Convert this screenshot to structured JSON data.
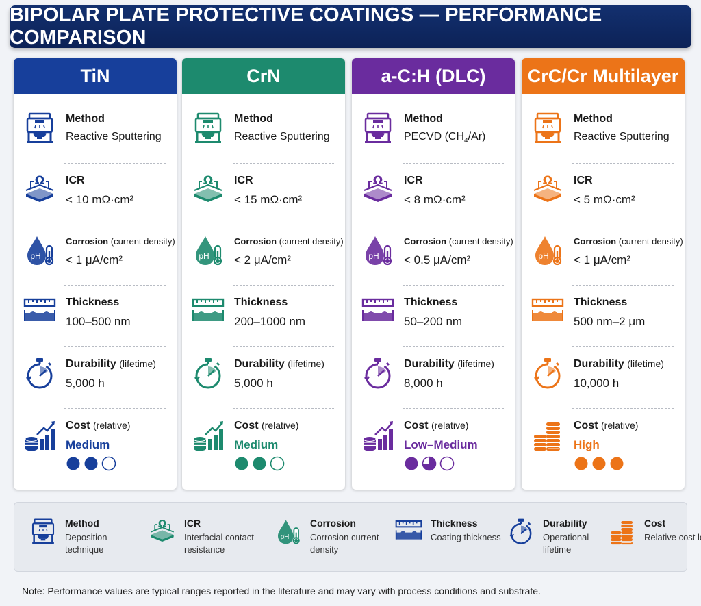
{
  "title": "BIPOLAR PLATE PROTECTIVE COATINGS — PERFORMANCE COMPARISON",
  "labels": {
    "method": "Method",
    "icr": "ICR",
    "corrosion": "Corrosion",
    "corrosion_sub": "(current density)",
    "thickness": "Thickness",
    "durability": "Durability",
    "durability_sub": "(lifetime)",
    "cost": "Cost",
    "cost_sub": "(relative)"
  },
  "coatings": [
    {
      "name": "TiN",
      "color": "#173f9b",
      "method": "Reactive Sputtering",
      "icr": "< 10 mΩ·cm²",
      "corrosion": "< 1 μA/cm²",
      "thickness": "100–500 nm",
      "durability": "5,000 h",
      "cost": "Medium",
      "cost_level": 2
    },
    {
      "name": "CrN",
      "color": "#1d8a6e",
      "method": "Reactive Sputtering",
      "icr": "< 15 mΩ·cm²",
      "corrosion": "< 2 μA/cm²",
      "thickness": "200–1000 nm",
      "durability": "5,000 h",
      "cost": "Medium",
      "cost_level": 2
    },
    {
      "name": "a-C:H (DLC)",
      "color": "#6a2c9e",
      "method_main": "PECVD (CH",
      "method_subscript": "4",
      "method_end": "/Ar)",
      "icr": "< 8 mΩ·cm²",
      "corrosion": "< 0.5 μA/cm²",
      "thickness": "50–200 nm",
      "durability": "8,000 h",
      "cost": "Low–Medium",
      "cost_level": 1.5
    },
    {
      "name": "CrC/Cr Multilayer",
      "color": "#ec7418",
      "method": "Reactive Sputtering",
      "icr": "< 5 mΩ·cm²",
      "corrosion": "< 1 μA/cm²",
      "thickness": "500 nm–2 μm",
      "durability": "10,000 h",
      "cost": "High",
      "cost_level": 3
    }
  ],
  "legend": [
    {
      "icon": "deposition-chamber-icon",
      "title": "Method",
      "desc": "Deposition technique"
    },
    {
      "icon": "resistance-icon",
      "title": "ICR",
      "desc": "Interfacial contact resistance"
    },
    {
      "icon": "ph-drop-icon",
      "title": "Corrosion",
      "desc": "Corrosion current density"
    },
    {
      "icon": "ruler-icon",
      "title": "Thickness",
      "desc": "Coating thickness"
    },
    {
      "icon": "stopwatch-icon",
      "title": "Durability",
      "desc": "Operational lifetime"
    },
    {
      "icon": "coins-icon",
      "title": "Cost",
      "desc": "Relative cost level"
    }
  ],
  "note": "Note: Performance values are typical ranges reported in the literature and may vary with process conditions and substrate."
}
